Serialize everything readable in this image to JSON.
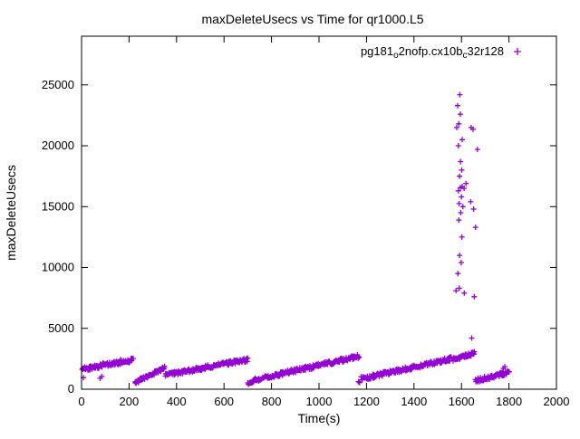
{
  "chart_data": {
    "type": "scatter",
    "title": "maxDeleteUsecs vs Time for qr1000.L5",
    "xlabel": "Time(s)",
    "ylabel": "maxDeleteUsecs",
    "x_range": [
      0,
      2000
    ],
    "y_range": [
      0,
      29000
    ],
    "x_ticks": [
      0,
      200,
      400,
      600,
      800,
      1000,
      1200,
      1400,
      1600,
      1800,
      2000
    ],
    "y_ticks": [
      0,
      5000,
      10000,
      15000,
      20000,
      25000
    ],
    "grid": false,
    "legend_position": "top-right-inside",
    "marker": "plus",
    "marker_color": "#9400d3",
    "series": [
      {
        "name": "pg181_o2nofp.cx10b_c32r128",
        "label_parts": [
          {
            "t": "pg181"
          },
          {
            "s": "o"
          },
          {
            "t": "2nofp.cx10b"
          },
          {
            "s": "c"
          },
          {
            "t": "32r128"
          }
        ],
        "segments": [
          {
            "x0": 2,
            "x1": 215,
            "y0": 1650,
            "y1": 2400,
            "jitter": 180,
            "n": 90
          },
          {
            "x0": 225,
            "x1": 350,
            "y0": 550,
            "y1": 1750,
            "jitter": 150,
            "n": 55
          },
          {
            "x0": 352,
            "x1": 700,
            "y0": 1150,
            "y1": 2450,
            "jitter": 160,
            "n": 150
          },
          {
            "x0": 703,
            "x1": 725,
            "y0": 450,
            "y1": 650,
            "jitter": 100,
            "n": 10
          },
          {
            "x0": 726,
            "x1": 1168,
            "y0": 750,
            "y1": 2700,
            "jitter": 170,
            "n": 190
          },
          {
            "x0": 1178,
            "x1": 1558,
            "y0": 850,
            "y1": 2500,
            "jitter": 170,
            "n": 165
          },
          {
            "x0": 1565,
            "x1": 1655,
            "y0": 2450,
            "y1": 2950,
            "jitter": 150,
            "n": 45
          },
          {
            "x0": 1658,
            "x1": 1800,
            "y0": 700,
            "y1": 1350,
            "jitter": 180,
            "n": 55
          }
        ],
        "outliers": [
          [
            8,
            950
          ],
          [
            78,
            900
          ],
          [
            85,
            1050
          ],
          [
            218,
            2520
          ],
          [
            700,
            520
          ],
          [
            708,
            480
          ],
          [
            1166,
            620
          ],
          [
            1171,
            540
          ],
          [
            1577,
            8100
          ],
          [
            1591,
            8300
          ],
          [
            1612,
            7900
          ],
          [
            1654,
            7600
          ],
          [
            1585,
            9500
          ],
          [
            1599,
            10400
          ],
          [
            1592,
            11000
          ],
          [
            1602,
            12500
          ],
          [
            1659,
            13300
          ],
          [
            1589,
            13900
          ],
          [
            1597,
            14500
          ],
          [
            1606,
            15000
          ],
          [
            1590,
            15250
          ],
          [
            1600,
            15800
          ],
          [
            1639,
            15400
          ],
          [
            1651,
            14800
          ],
          [
            1587,
            16300
          ],
          [
            1595,
            16550
          ],
          [
            1603,
            16650
          ],
          [
            1611,
            16500
          ],
          [
            1619,
            16900
          ],
          [
            1592,
            17500
          ],
          [
            1601,
            18000
          ],
          [
            1596,
            18700
          ],
          [
            1587,
            20000
          ],
          [
            1603,
            20500
          ],
          [
            1580,
            21500
          ],
          [
            1589,
            21800
          ],
          [
            1641,
            21500
          ],
          [
            1649,
            21350
          ],
          [
            1595,
            22600
          ],
          [
            1584,
            23300
          ],
          [
            1593,
            24200
          ],
          [
            1667,
            19700
          ],
          [
            1643,
            4200
          ],
          [
            1776,
            1700
          ],
          [
            1783,
            1850
          ]
        ]
      }
    ]
  }
}
